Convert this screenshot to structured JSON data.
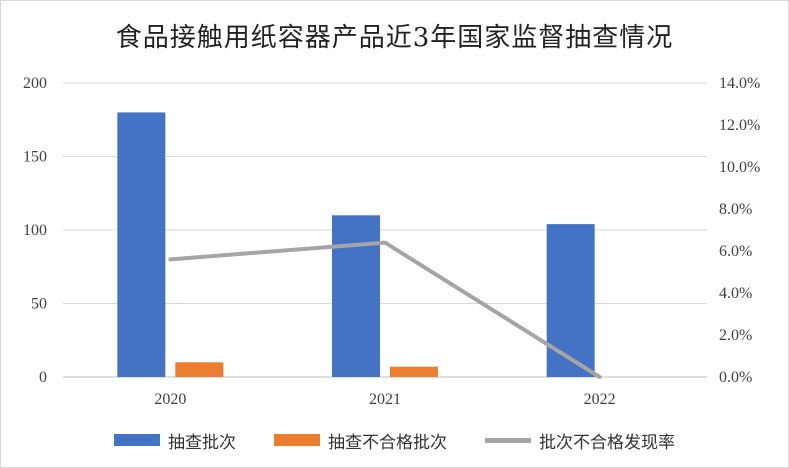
{
  "chart_data": {
    "type": "bar",
    "title": "食品接触用纸容器产品近3年国家监督抽查情况",
    "categories": [
      "2020",
      "2021",
      "2022"
    ],
    "series": [
      {
        "name": "抽查批次",
        "kind": "bar",
        "axis": "left",
        "color": "#4472C4",
        "values": [
          180,
          110,
          104
        ]
      },
      {
        "name": "抽查不合格批次",
        "kind": "bar",
        "axis": "left",
        "color": "#ED7D31",
        "values": [
          10,
          7,
          0
        ]
      },
      {
        "name": "批次不合格发现率",
        "kind": "line",
        "axis": "right",
        "color": "#A5A5A5",
        "values": [
          0.056,
          0.064,
          0.0
        ]
      }
    ],
    "y_left": {
      "min": 0,
      "max": 200,
      "ticks": [
        "0",
        "50",
        "100",
        "150",
        "200"
      ]
    },
    "y_right": {
      "min": 0,
      "max": 0.14,
      "ticks": [
        "0.0%",
        "2.0%",
        "4.0%",
        "6.0%",
        "8.0%",
        "10.0%",
        "12.0%",
        "14.0%"
      ]
    },
    "grid": true,
    "legend_position": "bottom"
  }
}
